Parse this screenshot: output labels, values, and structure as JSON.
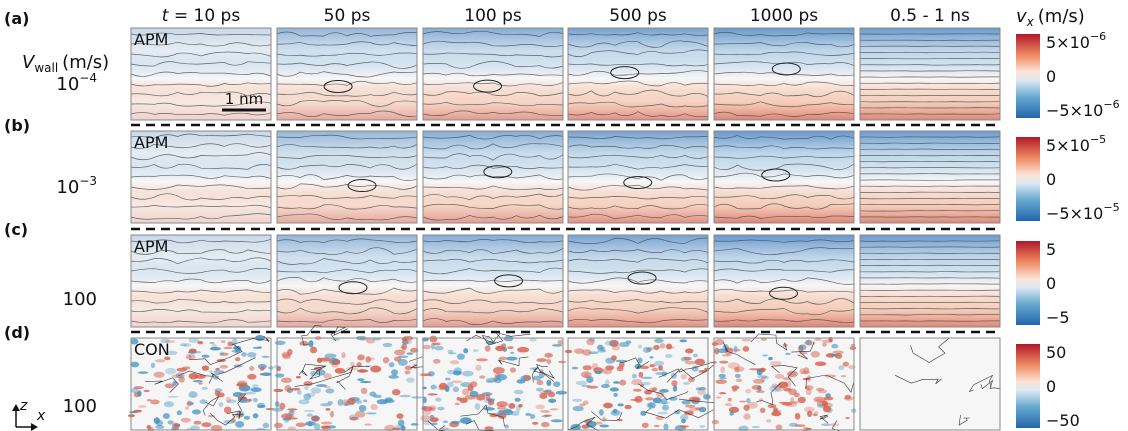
{
  "header": {
    "time_symbol": "t",
    "columns": [
      "= 10 ps",
      "50 ps",
      "100 ps",
      "500 ps",
      "1000 ps",
      "0.5 - 1 ns"
    ]
  },
  "wall_label": {
    "symbol": "V",
    "subscript": "wall",
    "unit": "(m/s)"
  },
  "colorbar_label": {
    "symbol": "v",
    "subscript": "x",
    "unit": "(m/s)"
  },
  "scale_bar": "1 nm",
  "axes_icon": {
    "vertical": "z",
    "horizontal": "x"
  },
  "rows": [
    {
      "label": "(a)",
      "wall_speed": {
        "base": "10",
        "exp": "−4"
      },
      "panel_label": "APM",
      "colorbar_ticks": [
        {
          "base": "5×10",
          "exp": "−6"
        },
        {
          "base": "0",
          "exp": ""
        },
        {
          "base": "−5×10",
          "exp": "−6"
        }
      ]
    },
    {
      "label": "(b)",
      "wall_speed": {
        "base": "10",
        "exp": "−3"
      },
      "panel_label": "APM",
      "colorbar_ticks": [
        {
          "base": "5×10",
          "exp": "−5"
        },
        {
          "base": "0",
          "exp": ""
        },
        {
          "base": "−5×10",
          "exp": "−5"
        }
      ]
    },
    {
      "label": "(c)",
      "wall_speed": {
        "base": "100",
        "exp": ""
      },
      "panel_label": "APM",
      "colorbar_ticks": [
        {
          "base": "5",
          "exp": ""
        },
        {
          "base": "0",
          "exp": ""
        },
        {
          "base": "−5",
          "exp": ""
        }
      ]
    },
    {
      "label": "(d)",
      "wall_speed": {
        "base": "100",
        "exp": ""
      },
      "panel_label": "CON",
      "colorbar_ticks": [
        {
          "base": "50",
          "exp": ""
        },
        {
          "base": "0",
          "exp": ""
        },
        {
          "base": "−50",
          "exp": ""
        }
      ]
    }
  ]
}
